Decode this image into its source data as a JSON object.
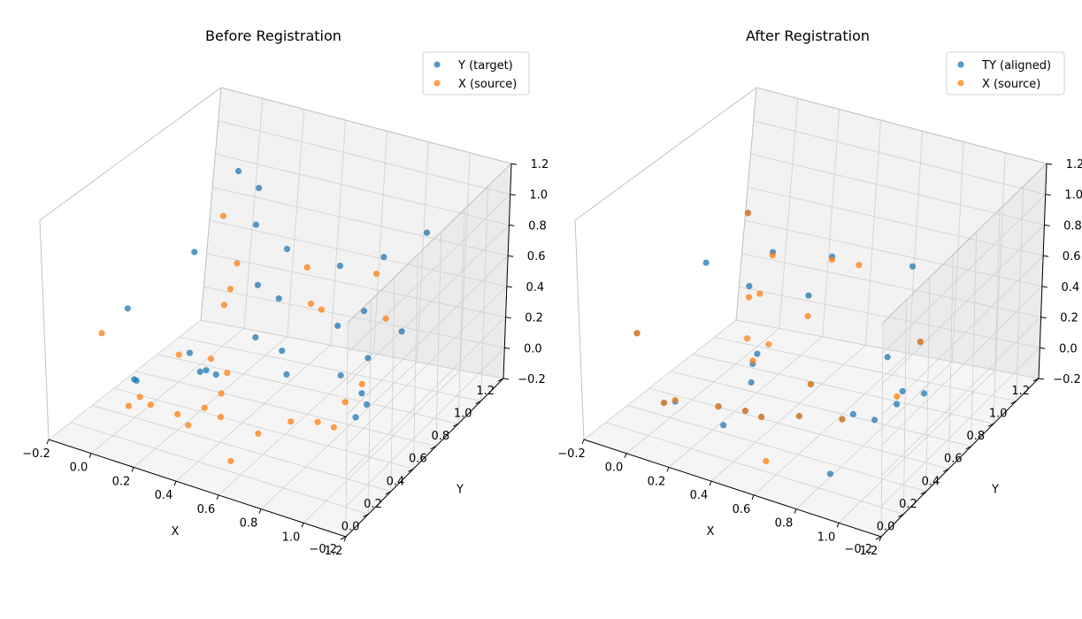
{
  "colors": {
    "series_a": "#1f77b4",
    "series_b": "#ff7f0e"
  },
  "chart_data": [
    {
      "type": "scatter",
      "projection": "3d",
      "title": "Before Registration",
      "xlabel": "X",
      "ylabel": "Y",
      "zlabel": "",
      "xlim": [
        -0.2,
        1.2
      ],
      "ylim": [
        -0.2,
        1.2
      ],
      "zlim": [
        -0.2,
        1.2
      ],
      "ticks": {
        "x": [
          "−0.2",
          "0.0",
          "0.2",
          "0.4",
          "0.6",
          "0.8",
          "1.0",
          "1.2"
        ],
        "y": [
          "−0.2",
          "0.0",
          "0.2",
          "0.4",
          "0.6",
          "0.8",
          "1.0",
          "1.2"
        ],
        "z": [
          "−0.2",
          "0.0",
          "0.2",
          "0.4",
          "0.6",
          "0.8",
          "1.0",
          "1.2"
        ]
      },
      "grid": true,
      "legend_position": "top-right",
      "series": [
        {
          "name": "Y (target)",
          "color": "#1f77b4",
          "points": [
            [
              0.05,
              0.95,
              0.92
            ],
            [
              0.15,
              0.95,
              0.85
            ],
            [
              0.75,
              0.95,
              0.62
            ],
            [
              0.92,
              1.0,
              0.8
            ],
            [
              0.2,
              0.85,
              0.7
            ],
            [
              0.35,
              0.85,
              0.6
            ],
            [
              0.6,
              0.85,
              0.58
            ],
            [
              0.0,
              0.7,
              0.55
            ],
            [
              0.3,
              0.7,
              0.45
            ],
            [
              0.4,
              0.7,
              0.4
            ],
            [
              0.85,
              0.6,
              0.55
            ],
            [
              0.95,
              0.75,
              0.35
            ],
            [
              0.9,
              0.55,
              0.3
            ],
            [
              0.05,
              0.05,
              0.6
            ],
            [
              0.35,
              0.6,
              0.2
            ],
            [
              0.5,
              0.55,
              0.2
            ],
            [
              0.15,
              0.4,
              0.15
            ],
            [
              0.05,
              0.1,
              0.12
            ],
            [
              0.2,
              0.4,
              0.05
            ],
            [
              0.3,
              0.35,
              0.1
            ],
            [
              0.55,
              0.5,
              0.1
            ],
            [
              0.75,
              0.6,
              0.1
            ],
            [
              0.85,
              0.6,
              0.02
            ],
            [
              0.9,
              0.55,
              0.0
            ],
            [
              0.28,
              0.3,
              0.15
            ],
            [
              0.85,
              0.55,
              -0.1
            ],
            [
              0.05,
              0.12,
              0.1
            ],
            [
              0.6,
              0.85,
              0.2
            ]
          ]
        },
        {
          "name": "X (source)",
          "color": "#ff7f0e",
          "points": [
            [
              0.1,
              0.75,
              0.78
            ],
            [
              0.2,
              0.7,
              0.55
            ],
            [
              0.5,
              0.75,
              0.6
            ],
            [
              0.85,
              0.7,
              0.72
            ],
            [
              0.2,
              0.65,
              0.42
            ],
            [
              0.2,
              0.6,
              0.35
            ],
            [
              0.55,
              0.7,
              0.42
            ],
            [
              0.6,
              0.7,
              0.4
            ],
            [
              0.9,
              0.7,
              0.45
            ],
            [
              0.1,
              0.4,
              0.12
            ],
            [
              0.25,
              0.4,
              0.15
            ],
            [
              0.3,
              0.45,
              0.05
            ],
            [
              0.3,
              0.4,
              -0.05
            ],
            [
              0.85,
              0.6,
              0.08
            ],
            [
              0.8,
              0.55,
              -0.02
            ],
            [
              -0.1,
              0.1,
              0.35
            ],
            [
              0.05,
              0.05,
              -0.02
            ],
            [
              0.05,
              0.15,
              -0.02
            ],
            [
              0.1,
              0.15,
              -0.05
            ],
            [
              0.2,
              0.2,
              -0.1
            ],
            [
              0.3,
              0.25,
              -0.05
            ],
            [
              0.35,
              0.3,
              -0.12
            ],
            [
              0.25,
              0.2,
              -0.15
            ],
            [
              0.5,
              0.35,
              -0.2
            ],
            [
              0.6,
              0.45,
              -0.15
            ],
            [
              0.7,
              0.5,
              -0.15
            ],
            [
              0.75,
              0.55,
              -0.2
            ],
            [
              0.45,
              0.2,
              -0.3
            ]
          ]
        }
      ]
    },
    {
      "type": "scatter",
      "projection": "3d",
      "title": "After Registration",
      "xlabel": "X",
      "ylabel": "Y",
      "zlabel": "",
      "xlim": [
        -0.2,
        1.2
      ],
      "ylim": [
        -0.2,
        1.2
      ],
      "zlim": [
        -0.2,
        1.2
      ],
      "ticks": {
        "x": [
          "−0.2",
          "0.0",
          "0.2",
          "0.4",
          "0.6",
          "0.8",
          "1.0",
          "1.2"
        ],
        "y": [
          "−0.2",
          "0.0",
          "0.2",
          "0.4",
          "0.6",
          "0.8",
          "1.0",
          "1.2"
        ],
        "z": [
          "−0.2",
          "0.0",
          "0.2",
          "0.4",
          "0.6",
          "0.8",
          "1.0",
          "1.2"
        ]
      },
      "grid": true,
      "legend_position": "top-right",
      "series": [
        {
          "name": "TY (aligned)",
          "color": "#1f77b4",
          "points": [
            [
              0.05,
              0.75,
              0.78
            ],
            [
              0.2,
              0.7,
              0.62
            ],
            [
              0.45,
              0.75,
              0.65
            ],
            [
              0.8,
              0.8,
              0.68
            ],
            [
              0.15,
              0.6,
              0.45
            ],
            [
              0.4,
              0.65,
              0.45
            ],
            [
              0.0,
              0.5,
              0.6
            ],
            [
              0.3,
              0.4,
              0.2
            ],
            [
              0.28,
              0.4,
              0.13
            ],
            [
              0.3,
              0.35,
              0.05
            ],
            [
              0.5,
              0.5,
              0.02
            ],
            [
              0.9,
              0.7,
              0.3
            ],
            [
              0.75,
              0.7,
              0.15
            ],
            [
              0.85,
              0.65,
              0.0
            ],
            [
              0.95,
              0.65,
              0.02
            ],
            [
              0.85,
              0.6,
              -0.05
            ],
            [
              -0.1,
              0.1,
              0.35
            ],
            [
              0.05,
              0.05,
              0.0
            ],
            [
              0.05,
              0.15,
              -0.05
            ],
            [
              0.2,
              0.25,
              -0.08
            ],
            [
              0.3,
              0.3,
              -0.1
            ],
            [
              0.35,
              0.35,
              -0.15
            ],
            [
              0.25,
              0.2,
              -0.15
            ],
            [
              0.5,
              0.4,
              -0.12
            ],
            [
              0.65,
              0.5,
              -0.15
            ],
            [
              0.7,
              0.5,
              -0.1
            ],
            [
              0.8,
              0.5,
              -0.1
            ],
            [
              0.7,
              0.3,
              -0.35
            ]
          ]
        },
        {
          "name": "X (source)",
          "color": "#ff7f0e",
          "points": [
            [
              0.05,
              0.75,
              0.78
            ],
            [
              0.2,
              0.7,
              0.6
            ],
            [
              0.45,
              0.75,
              0.63
            ],
            [
              0.55,
              0.8,
              0.6
            ],
            [
              0.2,
              0.6,
              0.42
            ],
            [
              0.15,
              0.6,
              0.38
            ],
            [
              0.3,
              0.5,
              0.2
            ],
            [
              0.2,
              0.5,
              0.2
            ],
            [
              0.4,
              0.65,
              0.32
            ],
            [
              0.9,
              0.7,
              0.3
            ],
            [
              0.85,
              0.6,
              0.0
            ],
            [
              -0.1,
              0.1,
              0.35
            ],
            [
              0.05,
              0.05,
              0.0
            ],
            [
              0.05,
              0.15,
              -0.04
            ],
            [
              0.2,
              0.25,
              -0.08
            ],
            [
              0.3,
              0.3,
              -0.1
            ],
            [
              0.35,
              0.35,
              -0.15
            ],
            [
              0.5,
              0.4,
              -0.12
            ],
            [
              0.65,
              0.5,
              -0.15
            ],
            [
              0.45,
              0.2,
              -0.3
            ],
            [
              0.28,
              0.4,
              0.15
            ],
            [
              0.5,
              0.5,
              0.02
            ]
          ]
        }
      ]
    }
  ]
}
